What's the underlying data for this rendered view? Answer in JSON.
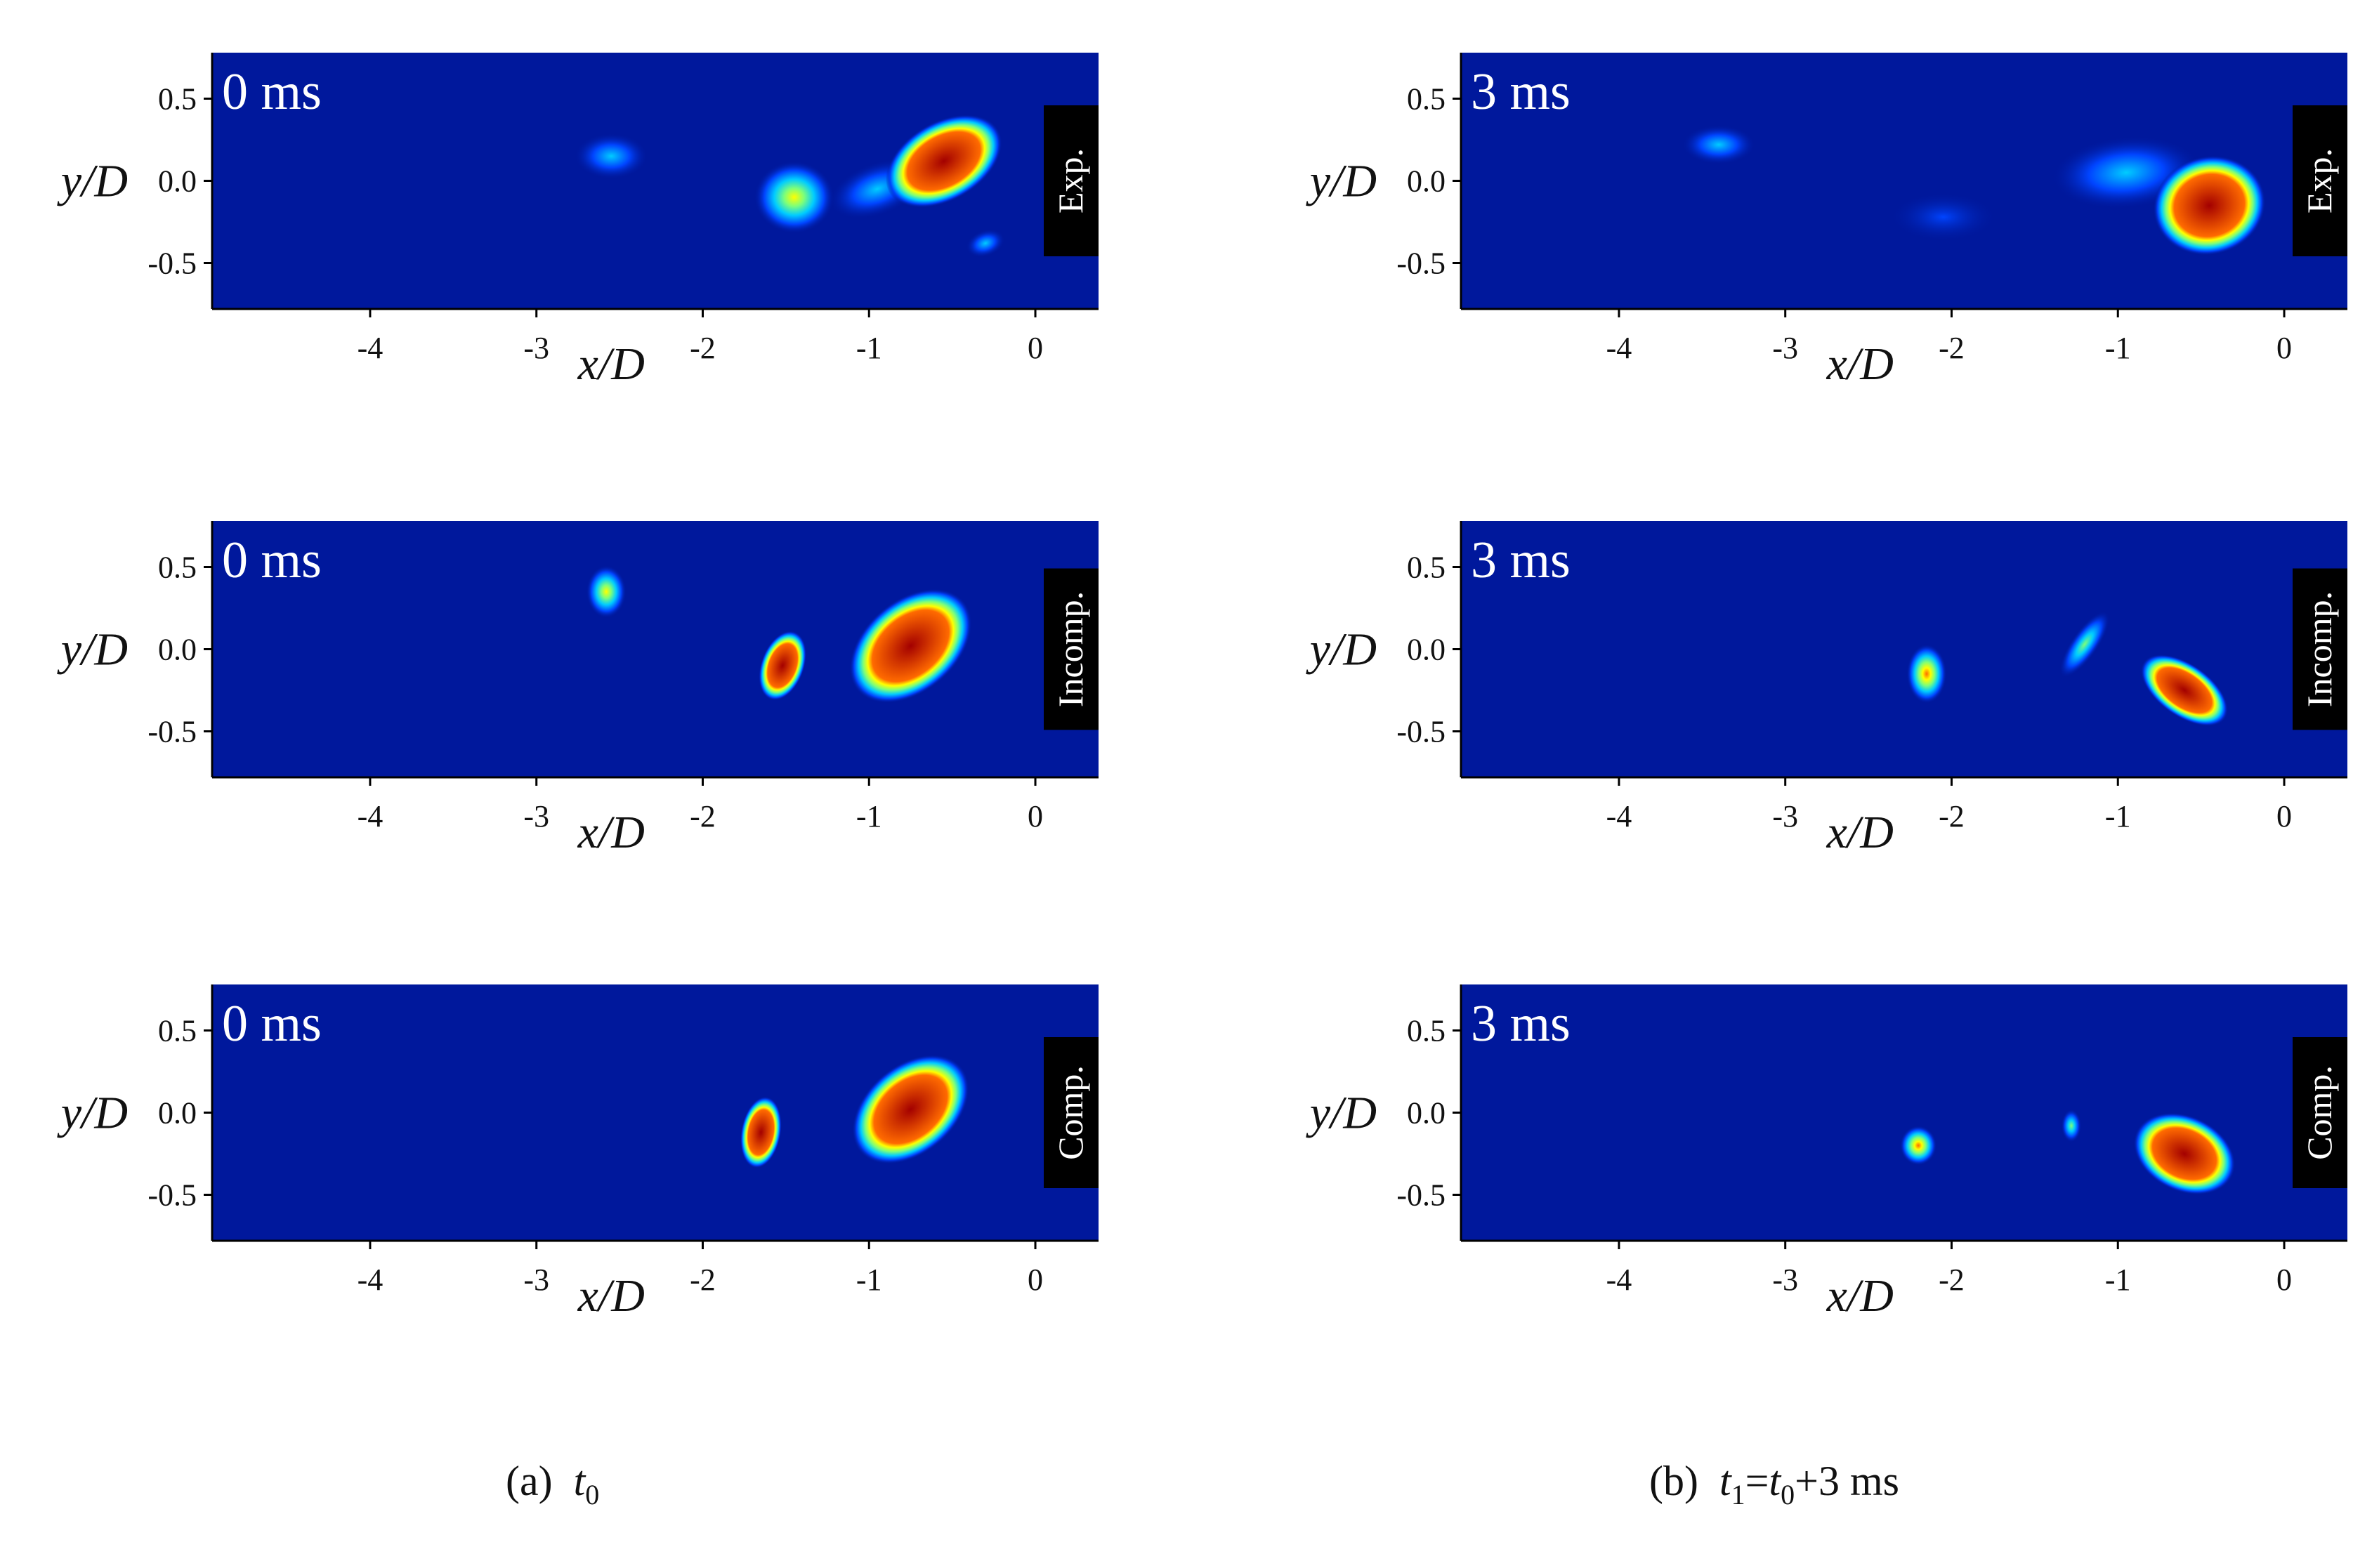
{
  "colors": {
    "background": "#00189c",
    "colormap": [
      "#00189c",
      "#0044ff",
      "#00ccff",
      "#7dff7a",
      "#ffff00",
      "#ff6a00",
      "#a30000"
    ],
    "label_box": "#000000",
    "label_text": "#ffffff"
  },
  "captions": {
    "a": {
      "prefix": "(a)",
      "var": "t",
      "sub": "0"
    },
    "b": {
      "prefix": "(b)",
      "v1": "t",
      "s1": "1",
      "eq": "=",
      "v2": "t",
      "s2": "0",
      "tail": "+3 ms"
    }
  },
  "chart_data": [
    {
      "type": "heatmap",
      "column": "a",
      "row": 1,
      "time_label": "0 ms",
      "tag": "Exp.",
      "xlabel": "x/D",
      "ylabel": "y/D",
      "xticks": [
        "-4",
        "-3",
        "-2",
        "-1",
        "0"
      ],
      "yticks": [
        "0.5",
        "0.0",
        "-0.5"
      ],
      "xlim": [
        -4.95,
        0.38
      ],
      "ylim": [
        -0.78,
        0.78
      ],
      "blobs": [
        {
          "cx": -2.55,
          "cy": 0.15,
          "rx": 0.22,
          "ry": 0.14,
          "rot": 0,
          "peak": 0.3
        },
        {
          "cx": -1.45,
          "cy": -0.1,
          "rx": 0.24,
          "ry": 0.22,
          "rot": 0,
          "peak": 0.62
        },
        {
          "cx": -0.95,
          "cy": -0.05,
          "rx": 0.3,
          "ry": 0.16,
          "rot": -20,
          "peak": 0.35
        },
        {
          "cx": -0.55,
          "cy": 0.12,
          "rx": 0.38,
          "ry": 0.24,
          "rot": -30,
          "peak": 0.95
        },
        {
          "cx": -0.3,
          "cy": -0.38,
          "rx": 0.12,
          "ry": 0.08,
          "rot": -20,
          "peak": 0.35
        }
      ]
    },
    {
      "type": "heatmap",
      "column": "a",
      "row": 2,
      "time_label": "0 ms",
      "tag": "Incomp.",
      "xlabel": "x/D",
      "ylabel": "y/D",
      "xticks": [
        "-4",
        "-3",
        "-2",
        "-1",
        "0"
      ],
      "yticks": [
        "0.5",
        "0.0",
        "-0.5"
      ],
      "xlim": [
        -4.95,
        0.38
      ],
      "ylim": [
        -0.78,
        0.78
      ],
      "blobs": [
        {
          "cx": -2.58,
          "cy": 0.35,
          "rx": 0.12,
          "ry": 0.16,
          "rot": 0,
          "peak": 0.62
        },
        {
          "cx": -1.52,
          "cy": -0.1,
          "rx": 0.13,
          "ry": 0.22,
          "rot": 20,
          "peak": 0.95
        },
        {
          "cx": -0.75,
          "cy": 0.02,
          "rx": 0.42,
          "ry": 0.28,
          "rot": -40,
          "peak": 1.0
        }
      ]
    },
    {
      "type": "heatmap",
      "column": "a",
      "row": 3,
      "time_label": "0 ms",
      "tag": "Comp.",
      "xlabel": "x/D",
      "ylabel": "y/D",
      "xticks": [
        "-4",
        "-3",
        "-2",
        "-1",
        "0"
      ],
      "yticks": [
        "0.5",
        "0.0",
        "-0.5"
      ],
      "xlim": [
        -4.95,
        0.38
      ],
      "ylim": [
        -0.78,
        0.78
      ],
      "blobs": [
        {
          "cx": -1.65,
          "cy": -0.12,
          "rx": 0.12,
          "ry": 0.22,
          "rot": 10,
          "peak": 0.95
        },
        {
          "cx": -0.75,
          "cy": 0.02,
          "rx": 0.4,
          "ry": 0.27,
          "rot": -40,
          "peak": 1.0
        }
      ]
    },
    {
      "type": "heatmap",
      "column": "b",
      "row": 1,
      "time_label": "3 ms",
      "tag": "Exp.",
      "xlabel": "x/D",
      "ylabel": "y/D",
      "xticks": [
        "-4",
        "-3",
        "-2",
        "-1",
        "0"
      ],
      "yticks": [
        "0.5",
        "0.0",
        "-0.5"
      ],
      "xlim": [
        -4.95,
        0.38
      ],
      "ylim": [
        -0.78,
        0.78
      ],
      "blobs": [
        {
          "cx": -3.4,
          "cy": 0.22,
          "rx": 0.22,
          "ry": 0.12,
          "rot": 0,
          "peak": 0.28
        },
        {
          "cx": -2.05,
          "cy": -0.22,
          "rx": 0.32,
          "ry": 0.15,
          "rot": 0,
          "peak": 0.2
        },
        {
          "cx": -0.95,
          "cy": 0.05,
          "rx": 0.45,
          "ry": 0.22,
          "rot": -5,
          "peak": 0.4
        },
        {
          "cx": -0.45,
          "cy": -0.15,
          "rx": 0.34,
          "ry": 0.3,
          "rot": -15,
          "peak": 0.95
        }
      ]
    },
    {
      "type": "heatmap",
      "column": "b",
      "row": 2,
      "time_label": "3 ms",
      "tag": "Incomp.",
      "xlabel": "x/D",
      "ylabel": "y/D",
      "xticks": [
        "-4",
        "-3",
        "-2",
        "-1",
        "0"
      ],
      "yticks": [
        "0.5",
        "0.0",
        "-0.5"
      ],
      "xlim": [
        -4.95,
        0.38
      ],
      "ylim": [
        -0.78,
        0.78
      ],
      "blobs": [
        {
          "cx": -2.15,
          "cy": -0.15,
          "rx": 0.12,
          "ry": 0.18,
          "rot": 0,
          "peak": 0.82
        },
        {
          "cx": -1.2,
          "cy": 0.03,
          "rx": 0.08,
          "ry": 0.24,
          "rot": 35,
          "peak": 0.45
        },
        {
          "cx": -0.6,
          "cy": -0.25,
          "rx": 0.3,
          "ry": 0.16,
          "rot": 35,
          "peak": 1.0
        }
      ]
    },
    {
      "type": "heatmap",
      "column": "b",
      "row": 3,
      "time_label": "3 ms",
      "tag": "Comp.",
      "xlabel": "x/D",
      "ylabel": "y/D",
      "xticks": [
        "-4",
        "-3",
        "-2",
        "-1",
        "0"
      ],
      "yticks": [
        "0.5",
        "0.0",
        "-0.5"
      ],
      "xlim": [
        -4.95,
        0.38
      ],
      "ylim": [
        -0.78,
        0.78
      ],
      "blobs": [
        {
          "cx": -2.2,
          "cy": -0.2,
          "rx": 0.11,
          "ry": 0.12,
          "rot": 0,
          "peak": 0.75
        },
        {
          "cx": -1.28,
          "cy": -0.08,
          "rx": 0.06,
          "ry": 0.1,
          "rot": 0,
          "peak": 0.45
        },
        {
          "cx": -0.6,
          "cy": -0.25,
          "rx": 0.32,
          "ry": 0.23,
          "rot": 25,
          "peak": 1.0
        }
      ]
    }
  ]
}
